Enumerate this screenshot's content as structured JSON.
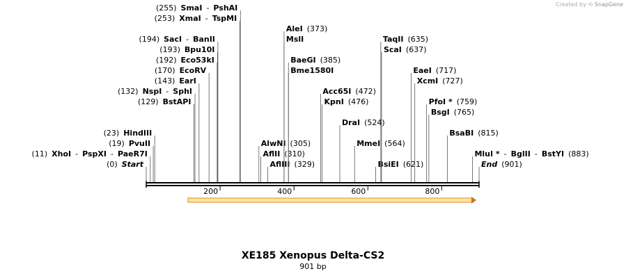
{
  "credit": {
    "prefix": "Created by",
    "brand": "SnapGene"
  },
  "title": "XE185 Xenopus Delta-CS2",
  "size_label": "901 bp",
  "sequence_length": 901,
  "axis_ticks": [
    {
      "pos": 200,
      "label": "200"
    },
    {
      "pos": 400,
      "label": "400"
    },
    {
      "pos": 600,
      "label": "600"
    },
    {
      "pos": 800,
      "label": "800"
    }
  ],
  "feature": {
    "name": "orf-arrow",
    "start": 113,
    "end": 901,
    "color": "#f0a030"
  },
  "site_labels": [
    {
      "pos": 0,
      "row": 0,
      "side": "right",
      "parts": [
        {
          "t": "(0)"
        },
        {
          "t": "Start",
          "b": 1,
          "i": 1
        }
      ]
    },
    {
      "pos": 11,
      "row": 1,
      "side": "right",
      "parts": [
        {
          "t": "(11)"
        },
        {
          "t": "XhoI",
          "b": 1
        },
        {
          "t": "-"
        },
        {
          "t": "PspXI",
          "b": 1
        },
        {
          "t": "-"
        },
        {
          "t": "PaeR7I",
          "b": 1
        }
      ]
    },
    {
      "pos": 19,
      "row": 2,
      "side": "right",
      "parts": [
        {
          "t": "(19)"
        },
        {
          "t": "PvuII",
          "b": 1
        }
      ]
    },
    {
      "pos": 23,
      "row": 3,
      "side": "right",
      "parts": [
        {
          "t": "(23)"
        },
        {
          "t": "HindIII",
          "b": 1
        }
      ]
    },
    {
      "pos": 129,
      "row": 6,
      "side": "right",
      "parts": [
        {
          "t": "(129)"
        },
        {
          "t": "BstAPI",
          "b": 1
        }
      ]
    },
    {
      "pos": 132,
      "row": 7,
      "side": "right",
      "parts": [
        {
          "t": "(132)"
        },
        {
          "t": "NspI",
          "b": 1
        },
        {
          "t": "-"
        },
        {
          "t": "SphI",
          "b": 1
        }
      ]
    },
    {
      "pos": 143,
      "row": 8,
      "side": "right",
      "parts": [
        {
          "t": "(143)"
        },
        {
          "t": "EarI",
          "b": 1
        }
      ]
    },
    {
      "pos": 170,
      "row": 9,
      "side": "right",
      "parts": [
        {
          "t": "(170)"
        },
        {
          "t": "EcoRV",
          "b": 1
        }
      ]
    },
    {
      "pos": 192,
      "row": 10,
      "side": "right",
      "parts": [
        {
          "t": "(192)"
        },
        {
          "t": "Eco53kI",
          "b": 1
        }
      ]
    },
    {
      "pos": 193,
      "row": 11,
      "side": "right",
      "parts": [
        {
          "t": "(193)"
        },
        {
          "t": "Bpu10I",
          "b": 1
        }
      ]
    },
    {
      "pos": 194,
      "row": 12,
      "side": "right",
      "parts": [
        {
          "t": "(194)"
        },
        {
          "t": "SacI",
          "b": 1
        },
        {
          "t": "-"
        },
        {
          "t": "BanII",
          "b": 1
        }
      ]
    },
    {
      "pos": 253,
      "row": 14,
      "side": "right",
      "parts": [
        {
          "t": "(253)"
        },
        {
          "t": "XmaI",
          "b": 1
        },
        {
          "t": "-"
        },
        {
          "t": "TspMI",
          "b": 1
        }
      ]
    },
    {
      "pos": 255,
      "row": 15,
      "side": "right",
      "parts": [
        {
          "t": "(255)"
        },
        {
          "t": "SmaI",
          "b": 1
        },
        {
          "t": "-"
        },
        {
          "t": "PshAI",
          "b": 1
        }
      ]
    },
    {
      "pos": 305,
      "row": 2,
      "side": "left",
      "parts": [
        {
          "t": "AlwNI",
          "b": 1
        },
        {
          "t": "(305)"
        }
      ]
    },
    {
      "pos": 310,
      "row": 1,
      "side": "left",
      "parts": [
        {
          "t": "AflII",
          "b": 1
        },
        {
          "t": "(310)"
        }
      ]
    },
    {
      "pos": 329,
      "row": 0,
      "side": "left",
      "parts": [
        {
          "t": "AflIII",
          "b": 1
        },
        {
          "t": "(329)"
        }
      ]
    },
    {
      "pos": 373,
      "row": 13,
      "side": "left",
      "parts": [
        {
          "t": "AleI",
          "b": 1
        },
        {
          "t": "(373)"
        }
      ]
    },
    {
      "pos": 373,
      "row": 12,
      "side": "left",
      "parts": [
        {
          "t": "MslI",
          "b": 1
        }
      ]
    },
    {
      "pos": 385,
      "row": 10,
      "side": "left",
      "parts": [
        {
          "t": "BaeGI",
          "b": 1
        },
        {
          "t": "(385)"
        }
      ]
    },
    {
      "pos": 385,
      "row": 9,
      "side": "left",
      "parts": [
        {
          "t": "Bme1580I",
          "b": 1
        }
      ]
    },
    {
      "pos": 472,
      "row": 7,
      "side": "left",
      "parts": [
        {
          "t": "Acc65I",
          "b": 1
        },
        {
          "t": "(472)"
        }
      ]
    },
    {
      "pos": 476,
      "row": 6,
      "side": "left",
      "parts": [
        {
          "t": "KpnI",
          "b": 1
        },
        {
          "t": "(476)"
        }
      ]
    },
    {
      "pos": 524,
      "row": 4,
      "side": "left",
      "parts": [
        {
          "t": "DraI",
          "b": 1
        },
        {
          "t": "(524)"
        }
      ]
    },
    {
      "pos": 564,
      "row": 2,
      "side": "left",
      "parts": [
        {
          "t": "MmeI",
          "b": 1
        },
        {
          "t": "(564)"
        }
      ]
    },
    {
      "pos": 621,
      "row": 0,
      "side": "left",
      "parts": [
        {
          "t": "BsiEI",
          "b": 1
        },
        {
          "t": "(621)"
        }
      ]
    },
    {
      "pos": 635,
      "row": 12,
      "side": "left",
      "parts": [
        {
          "t": "TaqII",
          "b": 1
        },
        {
          "t": "(635)"
        }
      ]
    },
    {
      "pos": 637,
      "row": 11,
      "side": "left",
      "parts": [
        {
          "t": "ScaI",
          "b": 1
        },
        {
          "t": "(637)"
        }
      ]
    },
    {
      "pos": 717,
      "row": 9,
      "side": "left",
      "parts": [
        {
          "t": "EaeI",
          "b": 1
        },
        {
          "t": "(717)"
        }
      ]
    },
    {
      "pos": 727,
      "row": 8,
      "side": "left",
      "parts": [
        {
          "t": "XcmI",
          "b": 1
        },
        {
          "t": "(727)"
        }
      ]
    },
    {
      "pos": 759,
      "row": 6,
      "side": "left",
      "parts": [
        {
          "t": "PfoI *",
          "b": 1
        },
        {
          "t": "(759)"
        }
      ]
    },
    {
      "pos": 765,
      "row": 5,
      "side": "left",
      "parts": [
        {
          "t": "BsgI",
          "b": 1
        },
        {
          "t": "(765)"
        }
      ]
    },
    {
      "pos": 815,
      "row": 3,
      "side": "left",
      "parts": [
        {
          "t": "BsaBI",
          "b": 1
        },
        {
          "t": "(815)"
        }
      ]
    },
    {
      "pos": 883,
      "row": 1,
      "side": "left",
      "parts": [
        {
          "t": "MluI *",
          "b": 1
        },
        {
          "t": "-"
        },
        {
          "t": "BglII",
          "b": 1
        },
        {
          "t": "-"
        },
        {
          "t": "BstYI",
          "b": 1
        },
        {
          "t": "(883)"
        }
      ]
    },
    {
      "pos": 901,
      "row": 0,
      "side": "left",
      "parts": [
        {
          "t": "End",
          "b": 1,
          "i": 1
        },
        {
          "t": "(901)"
        }
      ]
    }
  ]
}
